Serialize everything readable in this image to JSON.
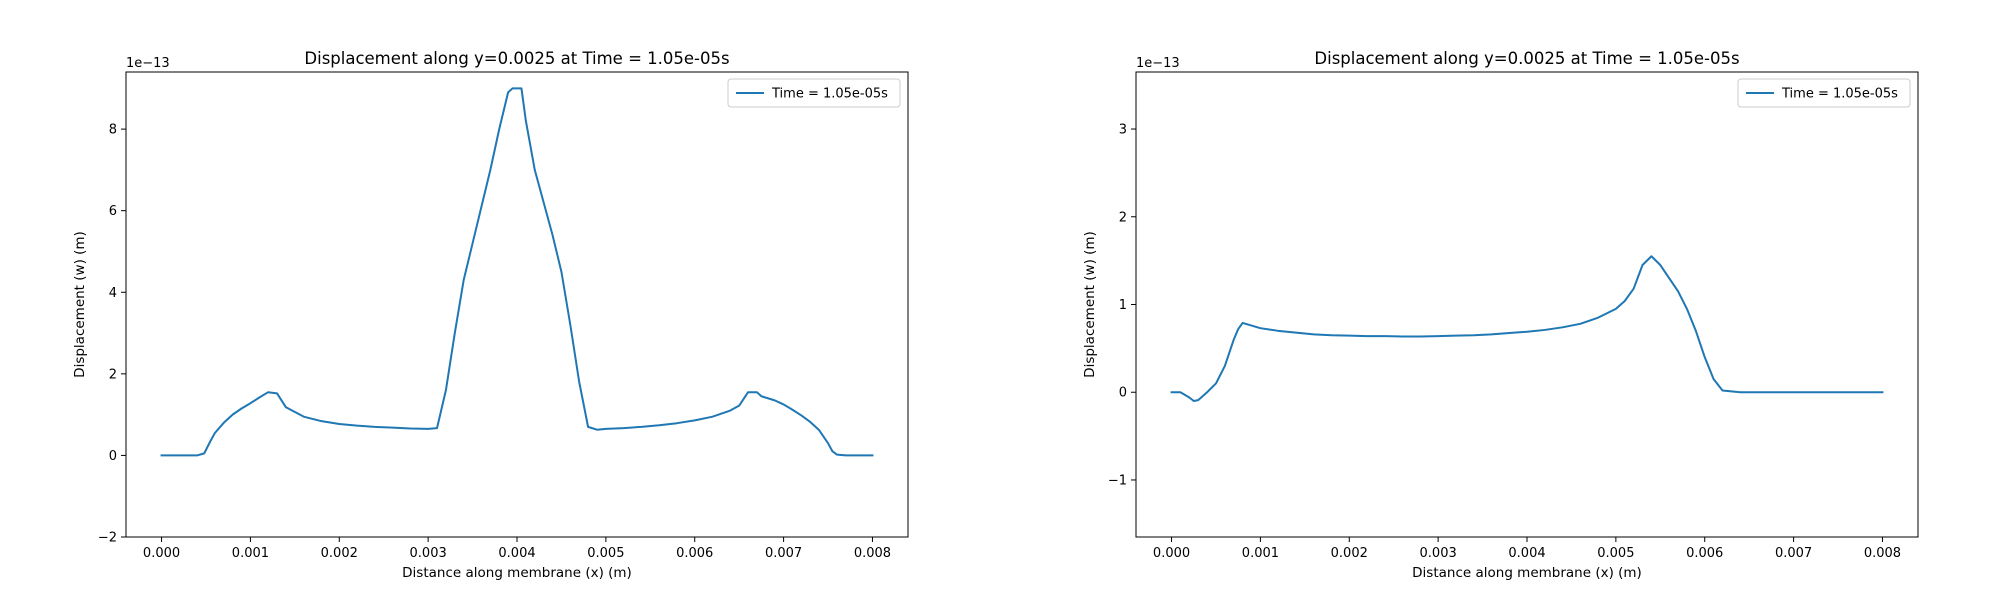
{
  "chart_data": [
    {
      "type": "line",
      "title": "Displacement along y=0.0025 at Time = 1.05e-05s",
      "xlabel": "Distance along membrane (x) (m)",
      "ylabel": "Displacement (w) (m)",
      "y_offset_label": "1e−13",
      "y_scale": 1e-13,
      "xlim": [
        -0.0004,
        0.0084
      ],
      "ylim": [
        -2e-13,
        9.4e-13
      ],
      "xticks": [
        0.0,
        0.001,
        0.002,
        0.003,
        0.004,
        0.005,
        0.006,
        0.007,
        0.008
      ],
      "xtick_labels": [
        "0.000",
        "0.001",
        "0.002",
        "0.003",
        "0.004",
        "0.005",
        "0.006",
        "0.007",
        "0.008"
      ],
      "yticks": [
        -2e-13,
        0,
        2e-13,
        4e-13,
        6e-13,
        8e-13
      ],
      "ytick_labels": [
        "−2",
        "0",
        "2",
        "4",
        "6",
        "8"
      ],
      "grid": false,
      "legend_position": "upper right",
      "color": "#1f77b4",
      "series": [
        {
          "name": "Time = 1.05e-05s",
          "x": [
            0.0,
            0.0003,
            0.0004,
            0.00048,
            0.00055,
            0.0006,
            0.0007,
            0.0008,
            0.0009,
            0.001,
            0.0011,
            0.0012,
            0.0013,
            0.0014,
            0.0016,
            0.0018,
            0.002,
            0.0022,
            0.0024,
            0.0026,
            0.0028,
            0.003,
            0.0031,
            0.0032,
            0.0033,
            0.0034,
            0.0035,
            0.0036,
            0.0037,
            0.0038,
            0.0039,
            0.00395,
            0.00405,
            0.0041,
            0.0042,
            0.0043,
            0.0044,
            0.0045,
            0.0046,
            0.0047,
            0.0048,
            0.0049,
            0.005,
            0.0052,
            0.0054,
            0.0056,
            0.0058,
            0.006,
            0.0062,
            0.0064,
            0.0065,
            0.0066,
            0.0067,
            0.00675,
            0.0069,
            0.007,
            0.0071,
            0.0072,
            0.0073,
            0.0074,
            0.0075,
            0.00755,
            0.0076,
            0.0077,
            0.008
          ],
          "y": [
            0,
            0,
            0,
            5e-15,
            3.5e-14,
            5.5e-14,
            8e-14,
            1e-13,
            1.15e-13,
            1.28e-13,
            1.42e-13,
            1.55e-13,
            1.52e-13,
            1.18e-13,
            9.5e-14,
            8.4e-14,
            7.7e-14,
            7.3e-14,
            7e-14,
            6.8e-14,
            6.6e-14,
            6.5e-14,
            6.7e-14,
            1.6e-13,
            3e-13,
            4.3e-13,
            5.2e-13,
            6.1e-13,
            7e-13,
            8e-13,
            8.9e-13,
            9e-13,
            9e-13,
            8.2e-13,
            7e-13,
            6.2e-13,
            5.4e-13,
            4.5e-13,
            3.2e-13,
            1.8e-13,
            7e-14,
            6.3e-14,
            6.5e-14,
            6.7e-14,
            7e-14,
            7.4e-14,
            7.9e-14,
            8.6e-14,
            9.5e-14,
            1.1e-13,
            1.22e-13,
            1.55e-13,
            1.55e-13,
            1.45e-13,
            1.35e-13,
            1.25e-13,
            1.12e-13,
            9.8e-14,
            8.2e-14,
            6.2e-14,
            3e-14,
            1e-14,
            2e-15,
            0,
            0
          ]
        }
      ]
    },
    {
      "type": "line",
      "title": "Displacement along y=0.0025 at Time = 1.05e-05s",
      "xlabel": "Distance along membrane (x) (m)",
      "ylabel": "Displacement (w) (m)",
      "y_offset_label": "1e−13",
      "y_scale": 1e-13,
      "xlim": [
        -0.0004,
        0.0084
      ],
      "ylim": [
        -1.65e-13,
        3.65e-13
      ],
      "xticks": [
        0.0,
        0.001,
        0.002,
        0.003,
        0.004,
        0.005,
        0.006,
        0.007,
        0.008
      ],
      "xtick_labels": [
        "0.000",
        "0.001",
        "0.002",
        "0.003",
        "0.004",
        "0.005",
        "0.006",
        "0.007",
        "0.008"
      ],
      "yticks": [
        -1e-13,
        0,
        1e-13,
        2e-13,
        3e-13
      ],
      "ytick_labels": [
        "−1",
        "0",
        "1",
        "2",
        "3"
      ],
      "grid": false,
      "legend_position": "upper right",
      "color": "#1f77b4",
      "series": [
        {
          "name": "Time = 1.05e-05s",
          "x": [
            0.0,
            0.0001,
            0.0002,
            0.00025,
            0.0003,
            0.0004,
            0.0005,
            0.0006,
            0.0007,
            0.00075,
            0.0008,
            0.0009,
            0.001,
            0.0012,
            0.0014,
            0.0016,
            0.0018,
            0.002,
            0.0022,
            0.0024,
            0.0026,
            0.0028,
            0.003,
            0.0032,
            0.0034,
            0.0036,
            0.0038,
            0.004,
            0.0042,
            0.0044,
            0.0046,
            0.0048,
            0.005,
            0.0051,
            0.0052,
            0.0053,
            0.0054,
            0.0055,
            0.0056,
            0.0057,
            0.0058,
            0.0059,
            0.006,
            0.0061,
            0.0062,
            0.0064,
            0.0066,
            0.007,
            0.0075,
            0.008
          ],
          "y": [
            0,
            0,
            -6e-15,
            -1e-14,
            -9e-15,
            0,
            1e-14,
            3e-14,
            6e-14,
            7.2e-14,
            7.9e-14,
            7.6e-14,
            7.3e-14,
            7e-14,
            6.8e-14,
            6.6e-14,
            6.5e-14,
            6.45e-14,
            6.4e-14,
            6.4e-14,
            6.35e-14,
            6.35e-14,
            6.4e-14,
            6.45e-14,
            6.5e-14,
            6.6e-14,
            6.75e-14,
            6.9e-14,
            7.1e-14,
            7.4e-14,
            7.8e-14,
            8.5e-14,
            9.5e-14,
            1.04e-13,
            1.18e-13,
            1.45e-13,
            1.55e-13,
            1.45e-13,
            1.3e-13,
            1.15e-13,
            9.5e-14,
            7e-14,
            4e-14,
            1.5e-14,
            2e-15,
            0,
            0,
            0,
            0,
            0
          ]
        }
      ]
    }
  ]
}
